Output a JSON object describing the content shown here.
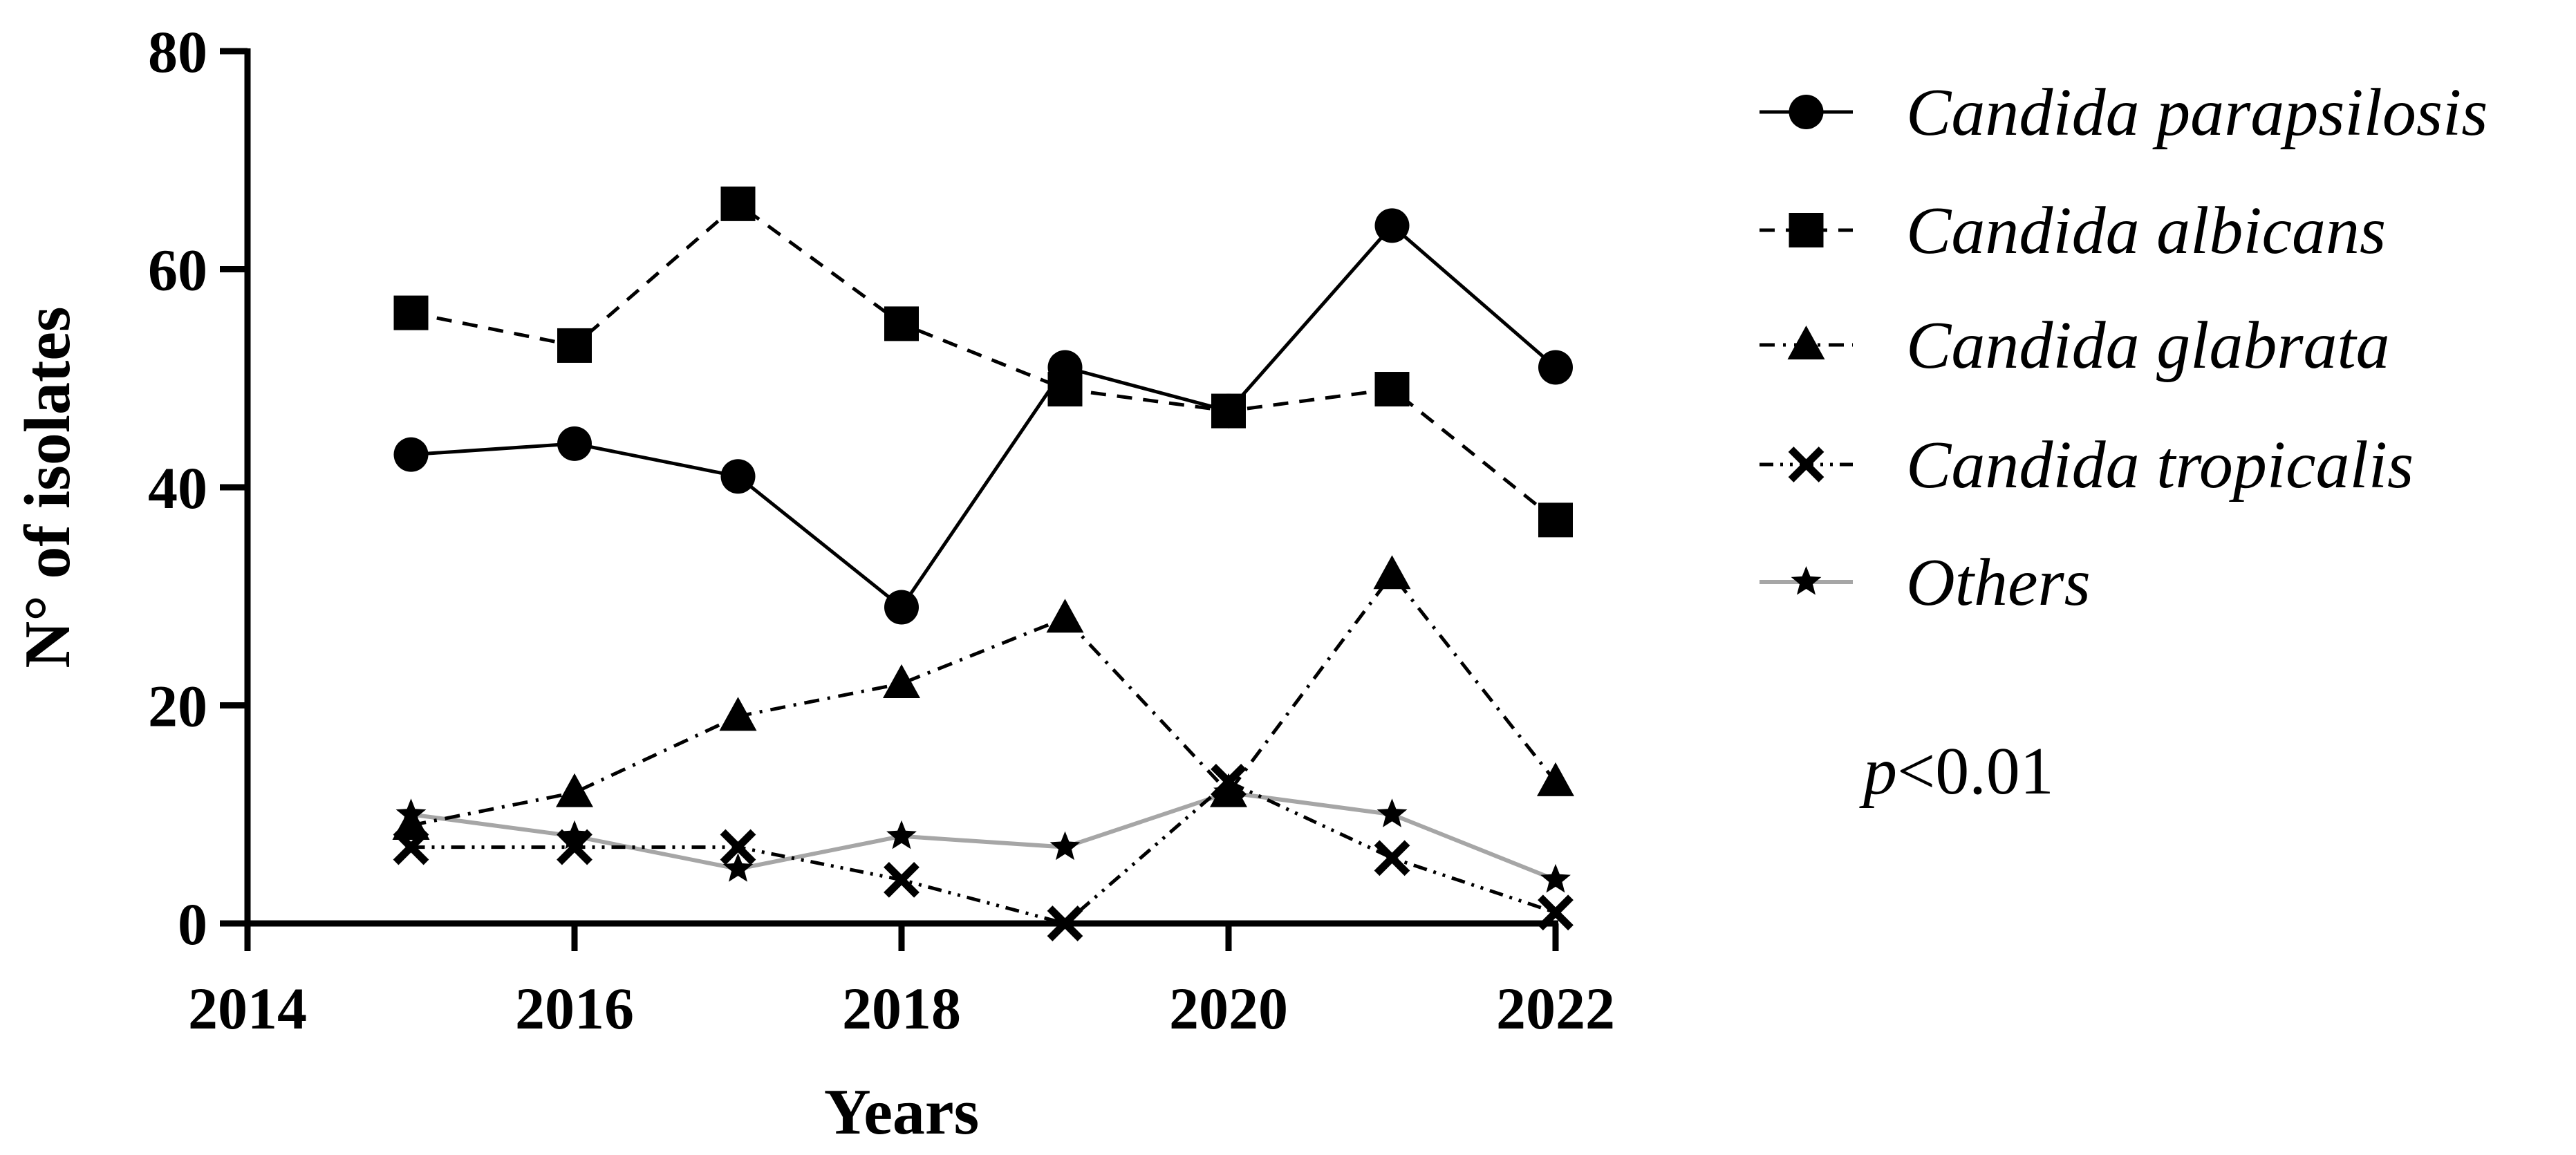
{
  "chart_data": {
    "type": "line",
    "xlabel": "Years",
    "ylabel": "N° of isolates",
    "xlim": [
      2014,
      2022
    ],
    "ylim": [
      0,
      80
    ],
    "x_ticks": [
      2014,
      2016,
      2018,
      2020,
      2022
    ],
    "y_ticks": [
      0,
      20,
      40,
      60,
      80
    ],
    "grid": false,
    "legend_position": "right",
    "x": [
      2015,
      2016,
      2017,
      2018,
      2019,
      2020,
      2021,
      2022
    ],
    "series": [
      {
        "name": "Candida parapsilosis",
        "marker": "circle",
        "line_style": "solid",
        "color": "#000000",
        "values": [
          43,
          44,
          41,
          29,
          51,
          47,
          64,
          51
        ]
      },
      {
        "name": "Candida albicans",
        "marker": "square",
        "line_style": "dashed",
        "color": "#000000",
        "values": [
          56,
          53,
          66,
          55,
          49,
          47,
          49,
          37
        ]
      },
      {
        "name": "Candida glabrata",
        "marker": "triangle",
        "line_style": "dash-dot",
        "color": "#000000",
        "values": [
          9,
          12,
          19,
          22,
          28,
          12,
          32,
          13
        ]
      },
      {
        "name": "Candida tropicalis",
        "marker": "x",
        "line_style": "dash-dot-dot",
        "color": "#000000",
        "values": [
          7,
          7,
          7,
          4,
          0,
          13,
          6,
          1
        ]
      },
      {
        "name": "Others",
        "marker": "star",
        "line_style": "solid",
        "color": "#a6a6a6",
        "values": [
          10,
          8,
          5,
          8,
          7,
          12,
          10,
          4
        ]
      }
    ],
    "annotation": {
      "italic": "p",
      "rest": "<0.01"
    }
  }
}
